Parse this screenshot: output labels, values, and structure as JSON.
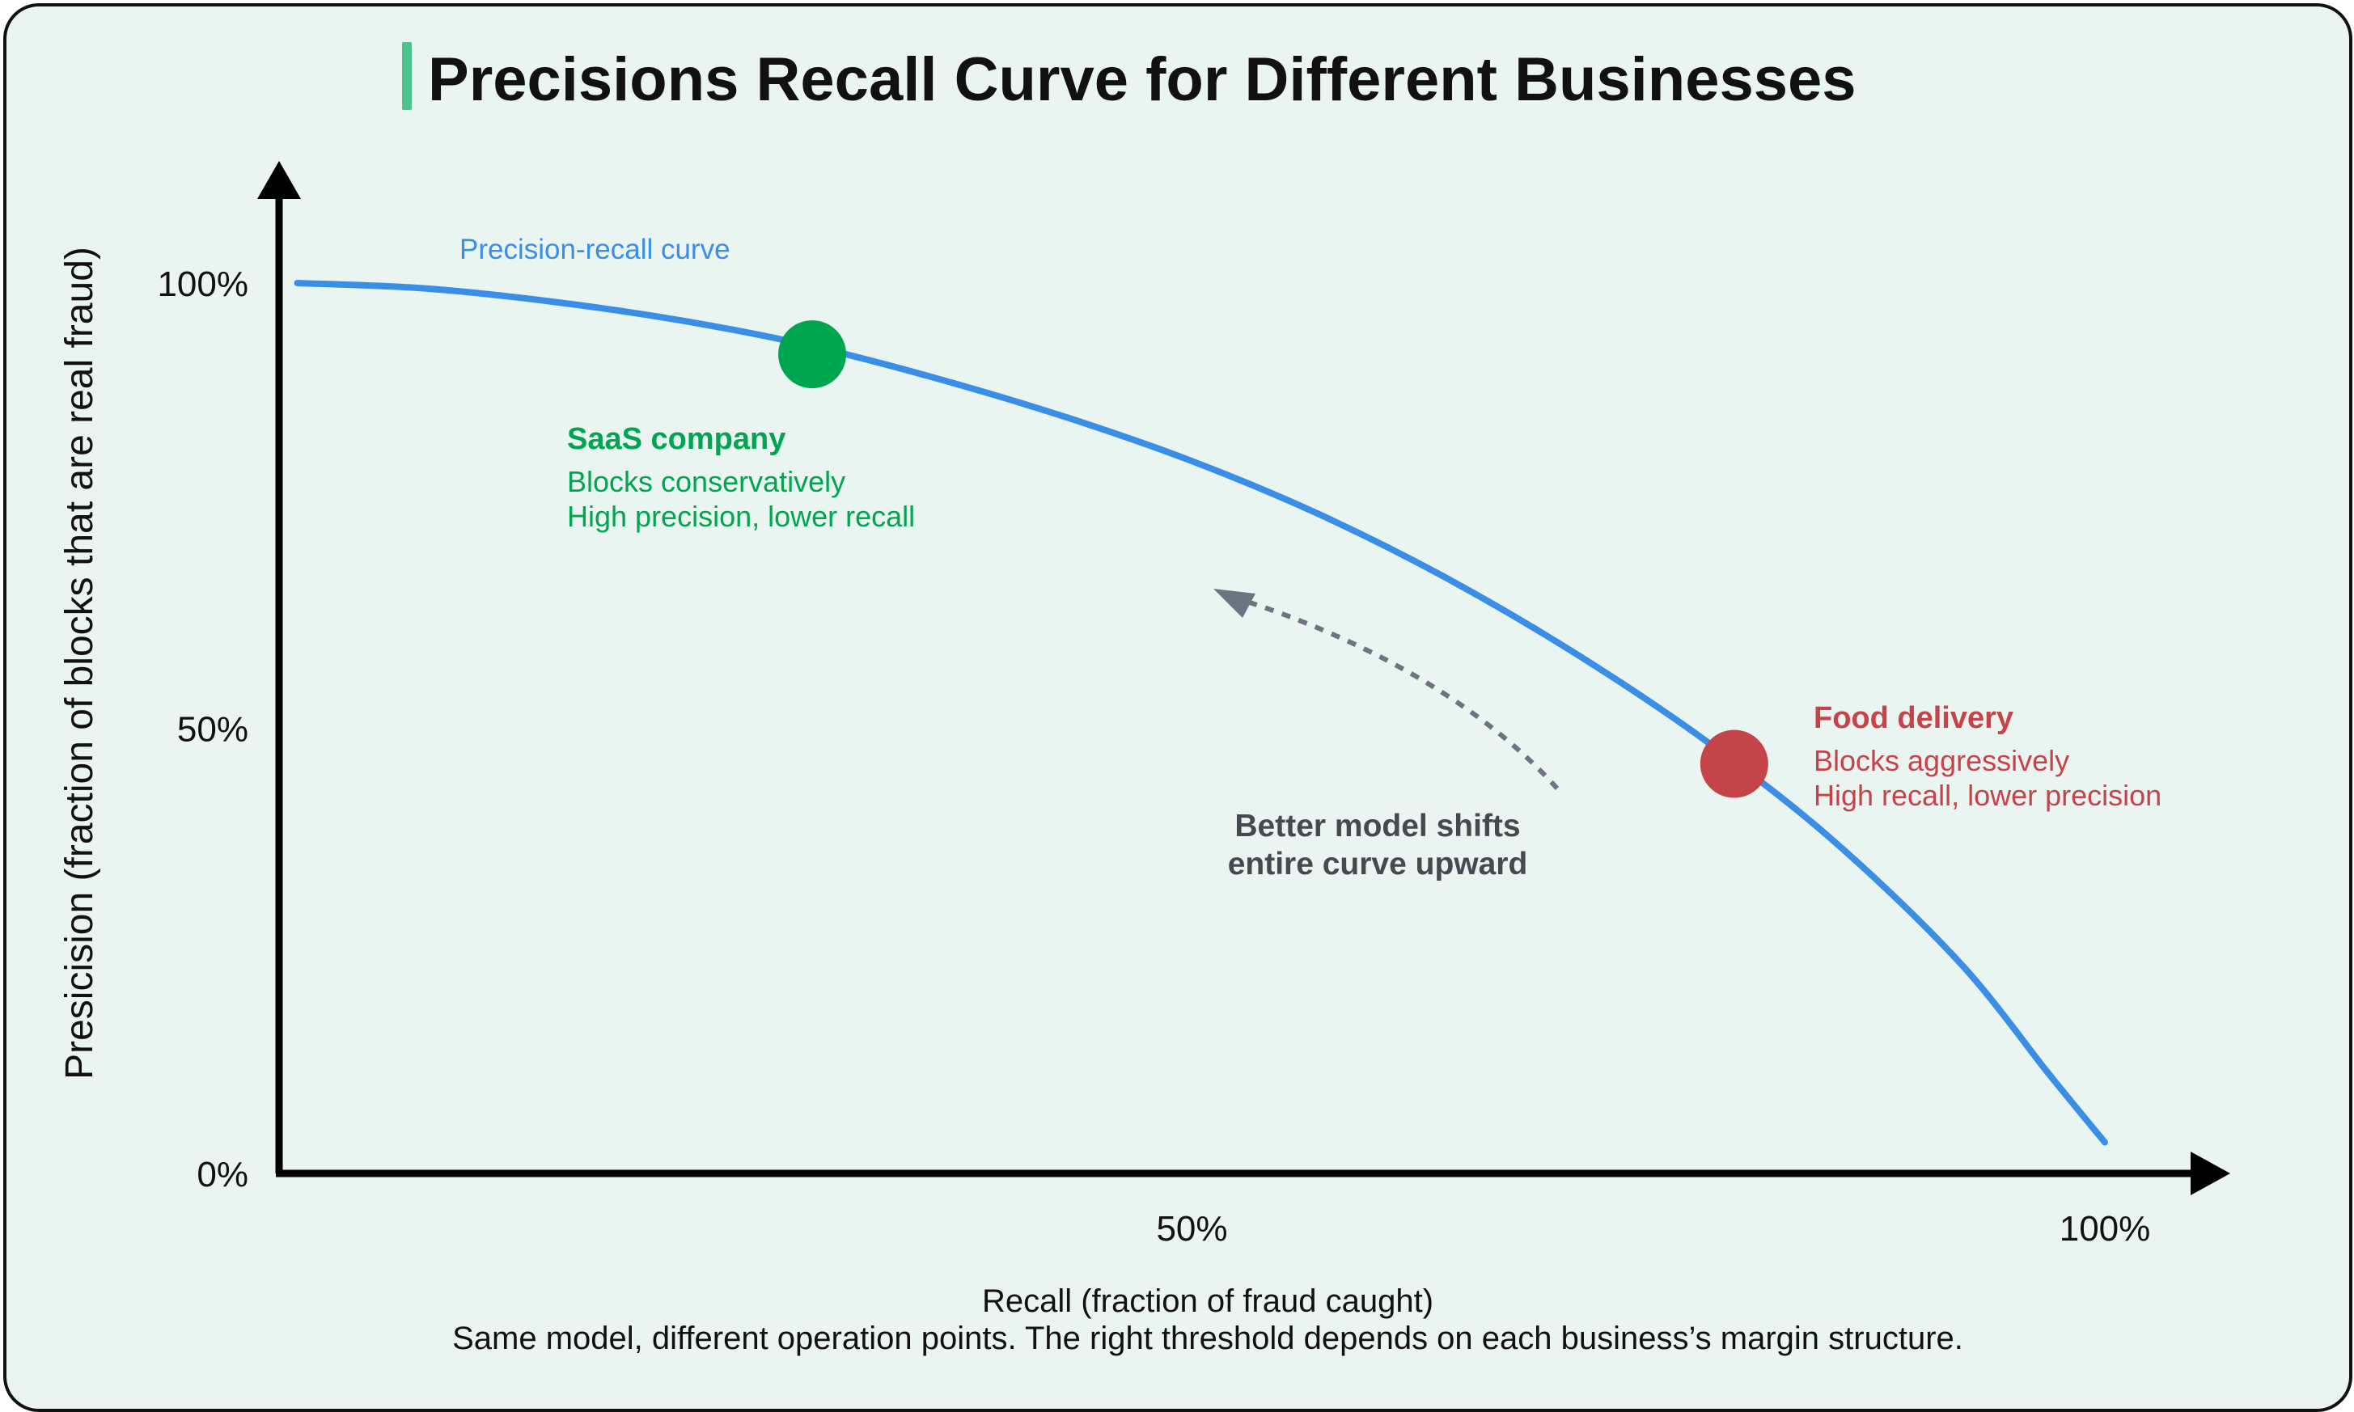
{
  "chart_data": {
    "type": "line",
    "title": "Precisions Recall Curve for Different Businesses",
    "xlabel": "Recall (fraction of fraud caught)",
    "ylabel": "Presicision (fraction of blocks that are real fraud)",
    "caption": "Same model, different operation points. The right threshold depends on each business’s margin structure.",
    "x_ticks": [
      {
        "value": 0.5,
        "label": "50%"
      },
      {
        "value": 1.0,
        "label": "100%"
      }
    ],
    "y_ticks": [
      {
        "value": 0.0,
        "label": "0%"
      },
      {
        "value": 0.5,
        "label": "50%"
      },
      {
        "value": 1.0,
        "label": "100%"
      }
    ],
    "xlim": [
      0,
      1.05
    ],
    "ylim": [
      0,
      1.1
    ],
    "grid": false,
    "series": [
      {
        "name": "Precision-recall curve",
        "color": "#3a8ee6",
        "x": [
          0.01,
          0.08,
          0.15,
          0.22,
          0.29,
          0.36,
          0.43,
          0.5,
          0.57,
          0.64,
          0.71,
          0.78,
          0.85,
          0.92,
          0.97,
          1.0
        ],
        "y": [
          1.0,
          0.994,
          0.979,
          0.958,
          0.93,
          0.893,
          0.85,
          0.8,
          0.74,
          0.668,
          0.584,
          0.488,
          0.376,
          0.238,
          0.11,
          0.035
        ]
      }
    ],
    "points": [
      {
        "name": "SaaS company",
        "color": "#00a550",
        "x": 0.292,
        "y": 0.92,
        "lines": [
          "Blocks conservatively",
          "High precision, lower recall"
        ]
      },
      {
        "name": "Food delivery",
        "color": "#c5444a",
        "x": 0.797,
        "y": 0.46,
        "lines": [
          "Blocks aggressively",
          "High recall, lower precision"
        ]
      }
    ],
    "annotation": {
      "lines": [
        "Better model shifts",
        "entire curve upward"
      ],
      "color": "#444a4f",
      "arrow_color": "#6b7480"
    }
  }
}
